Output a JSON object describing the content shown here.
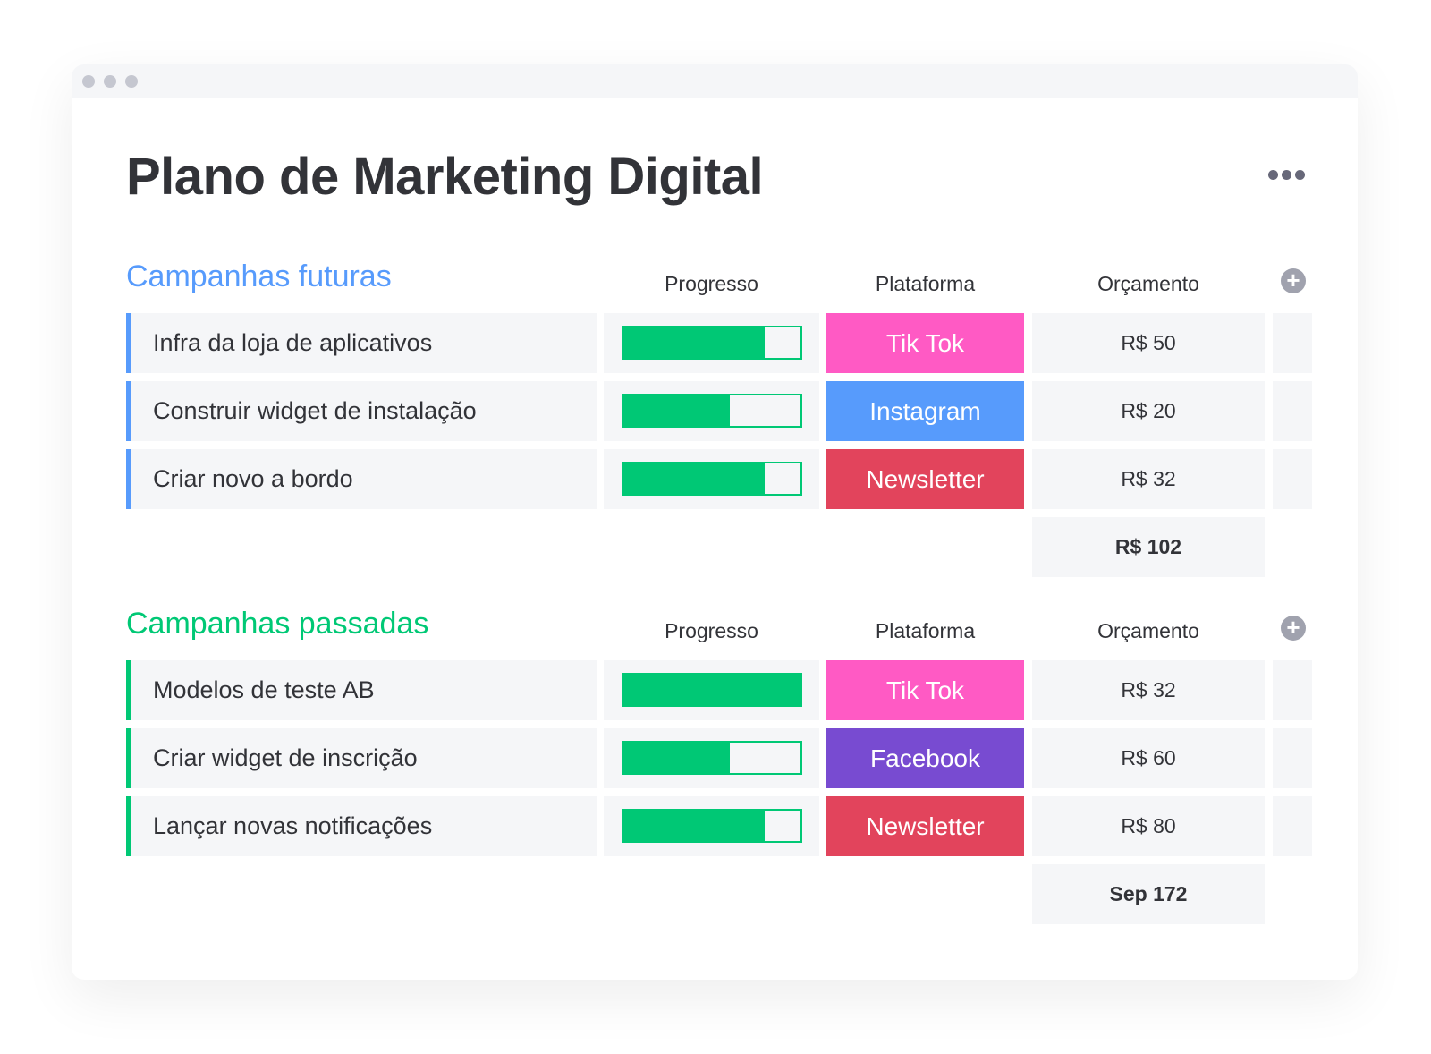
{
  "window": {
    "title": "Plano de Marketing Digital"
  },
  "colors": {
    "blue": "#579bfc",
    "green": "#00c875"
  },
  "groups": [
    {
      "title": "Campanhas futuras",
      "color": "#579bfc",
      "columns": {
        "progress": "Progresso",
        "platform": "Plataforma",
        "budget": "Orçamento"
      },
      "rows": [
        {
          "name": "Infra da loja de aplicativos",
          "progress": 0.8,
          "platform": "Tik Tok",
          "platform_color": "#ff5ac4",
          "budget": "R$ 50"
        },
        {
          "name": "Construir widget de instalação",
          "progress": 0.6,
          "platform": "Instagram",
          "platform_color": "#579bfc",
          "budget": "R$ 20"
        },
        {
          "name": "Criar novo a bordo",
          "progress": 0.8,
          "platform": "Newsletter",
          "platform_color": "#e2445c",
          "budget": "R$ 32"
        }
      ],
      "total": "R$ 102"
    },
    {
      "title": "Campanhas passadas",
      "color": "#00c875",
      "columns": {
        "progress": "Progresso",
        "platform": "Plataforma",
        "budget": "Orçamento"
      },
      "rows": [
        {
          "name": "Modelos de teste AB",
          "progress": 1.0,
          "platform": "Tik Tok",
          "platform_color": "#ff5ac4",
          "budget": "R$ 32"
        },
        {
          "name": "Criar widget de inscrição",
          "progress": 0.6,
          "platform": "Facebook",
          "platform_color": "#784bd1",
          "budget": "R$ 60"
        },
        {
          "name": "Lançar novas notificações",
          "progress": 0.8,
          "platform": "Newsletter",
          "platform_color": "#e2445c",
          "budget": "R$ 80"
        }
      ],
      "total": "Sep 172"
    }
  ]
}
